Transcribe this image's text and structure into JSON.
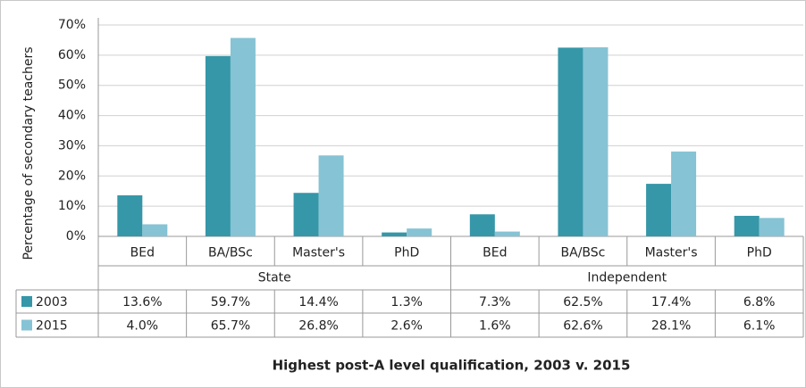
{
  "chart_data": {
    "type": "bar",
    "title": "Highest post-A level qualification, 2003 v. 2015",
    "y_label": "Percentage of secondary teachers",
    "groups": [
      "State",
      "Independent"
    ],
    "categories": [
      "BEd",
      "BA/BSc",
      "Master's",
      "PhD",
      "BEd",
      "BA/BSc",
      "Master's",
      "PhD"
    ],
    "series": [
      {
        "name": "2003",
        "color": "#3597a8",
        "values": [
          13.6,
          59.7,
          14.4,
          1.3,
          7.3,
          62.5,
          17.4,
          6.8
        ],
        "value_labels": [
          "13.6%",
          "59.7%",
          "14.4%",
          "1.3%",
          "7.3%",
          "62.5%",
          "17.4%",
          "6.8%"
        ]
      },
      {
        "name": "2015",
        "color": "#86c3d4",
        "values": [
          4.0,
          65.7,
          26.8,
          2.6,
          1.6,
          62.6,
          28.1,
          6.1
        ],
        "value_labels": [
          "4.0%",
          "65.7%",
          "26.8%",
          "2.6%",
          "1.6%",
          "62.6%",
          "28.1%",
          "6.1%"
        ]
      }
    ],
    "ylim": [
      0,
      70
    ],
    "yticks": [
      {
        "value": 0,
        "label": "0%"
      },
      {
        "value": 10,
        "label": "10%"
      },
      {
        "value": 20,
        "label": "20%"
      },
      {
        "value": 30,
        "label": "30%"
      },
      {
        "value": 40,
        "label": "40%"
      },
      {
        "value": 50,
        "label": "50%"
      },
      {
        "value": 60,
        "label": "60%"
      },
      {
        "value": 70,
        "label": "70%"
      }
    ],
    "grid": true
  }
}
